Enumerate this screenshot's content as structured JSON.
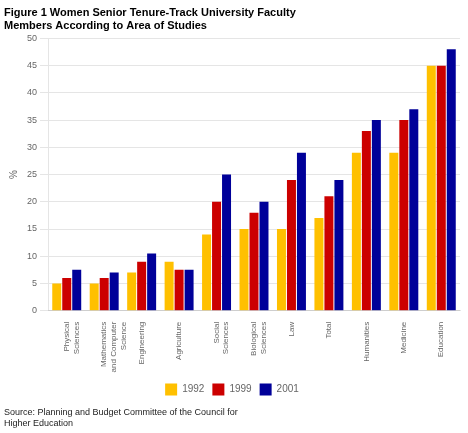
{
  "chart_data": {
    "type": "bar",
    "title": [
      "Figure 1 Women Senior Tenure-Track University Faculty",
      "Members According to Area of Studies"
    ],
    "ylabel": "%",
    "annotations": [
      "Source: Planning and Budget Committee of the Council for\nHigher Education"
    ],
    "categories": [
      "Physical\nSciences",
      "Mathematics\nand Computer\nScience",
      "Engineering",
      "Agriculture",
      "Social\nSciences",
      "Biological\nSciences",
      "Law",
      "Total",
      "Humanities",
      "Medicine",
      "Education"
    ],
    "series": [
      {
        "name": "1992",
        "color": "#FFC000",
        "values": [
          5,
          5,
          7,
          9,
          14,
          15,
          15,
          17,
          29,
          29,
          45
        ]
      },
      {
        "name": "1999",
        "color": "#CC0000",
        "values": [
          6,
          6,
          9,
          7.5,
          20,
          18,
          24,
          21,
          33,
          35,
          45
        ]
      },
      {
        "name": "2001",
        "color": "#000099",
        "values": [
          7.5,
          7,
          10.5,
          7.5,
          25,
          20,
          29,
          24,
          35,
          37,
          48
        ]
      }
    ],
    "ylim": [
      0,
      50
    ],
    "yticks": [
      0,
      5,
      10,
      15,
      20,
      25,
      30,
      35,
      40,
      45,
      50
    ],
    "grid": true,
    "legend": "bottom"
  }
}
